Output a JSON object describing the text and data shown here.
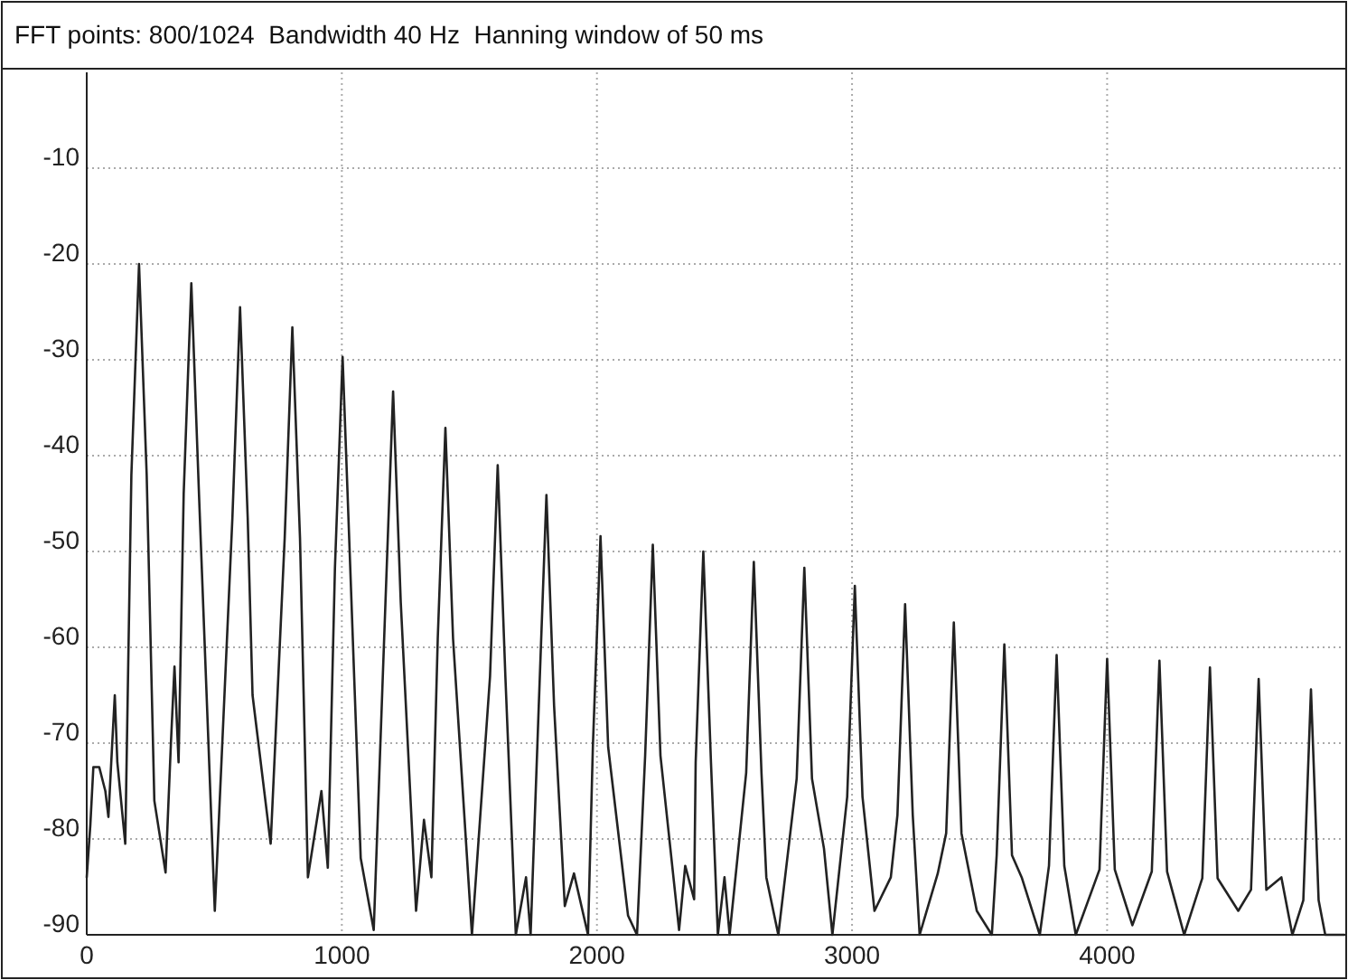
{
  "chart_data": {
    "type": "line",
    "title": "FFT points: 800/1024  Bandwidth 40 Hz  Hanning window of 50 ms",
    "x": [
      0,
      14,
      26,
      49,
      73,
      85,
      100,
      110,
      120,
      151,
      175,
      205,
      235,
      265,
      309,
      330,
      344,
      360,
      380,
      410,
      440,
      502,
      571,
      601,
      631,
      650,
      721,
      776,
      806,
      836,
      867,
      920,
      945,
      973,
      1003,
      1033,
      1074,
      1125,
      1171,
      1201,
      1231,
      1291,
      1322,
      1351,
      1376,
      1406,
      1436,
      1510,
      1581,
      1611,
      1641,
      1682,
      1722,
      1740,
      1772,
      1802,
      1832,
      1874,
      1910,
      1965,
      1984,
      2014,
      2044,
      2122,
      2157,
      2189,
      2219,
      2249,
      2322,
      2346,
      2381,
      2387,
      2417,
      2447,
      2474,
      2500,
      2520,
      2585,
      2615,
      2645,
      2664,
      2711,
      2783,
      2813,
      2843,
      2890,
      2923,
      2981,
      3011,
      3041,
      3088,
      3152,
      3178,
      3208,
      3238,
      3265,
      3336,
      3369,
      3399,
      3429,
      3489,
      3548,
      3567,
      3597,
      3627,
      3665,
      3736,
      3772,
      3802,
      3832,
      3877,
      3970,
      4000,
      4030,
      4099,
      4175,
      4205,
      4235,
      4302,
      4373,
      4403,
      4433,
      4514,
      4564,
      4594,
      4624,
      4683,
      4726,
      4769,
      4799,
      4829,
      4855,
      4930
    ],
    "series": [
      {
        "color": "#222222",
        "values": [
          -84,
          -78.6,
          -72.5,
          -72.5,
          -75,
          -77.7,
          -70,
          -65,
          -72,
          -80.5,
          -42,
          -20,
          -42,
          -76,
          -83.5,
          -70,
          -62,
          -72,
          -44,
          -22,
          -44,
          -87.5,
          -46.5,
          -24.5,
          -46.5,
          -65,
          -80.5,
          -48.6,
          -26.6,
          -48.6,
          -84,
          -75,
          -83,
          -51.7,
          -29.7,
          -51.7,
          -82,
          -89.5,
          -55.3,
          -33.3,
          -55.3,
          -87.5,
          -78,
          -84,
          -59.1,
          -37.1,
          -59.1,
          -90,
          -63,
          -41,
          -63,
          -90,
          -84,
          -90,
          -66.1,
          -44.1,
          -66.1,
          -87,
          -83.6,
          -90,
          -70.4,
          -48.4,
          -70.4,
          -88,
          -90,
          -71.3,
          -49.3,
          -71.3,
          -89.5,
          -82.8,
          -86.3,
          -72,
          -50,
          -72,
          -90,
          -84,
          -90,
          -73.1,
          -51.1,
          -73.1,
          -84,
          -90,
          -73.7,
          -51.7,
          -73.7,
          -81,
          -90,
          -75.6,
          -53.6,
          -75.6,
          -87.5,
          -84,
          -77.5,
          -55.5,
          -77.5,
          -90,
          -83.6,
          -79.4,
          -57.4,
          -79.4,
          -87.5,
          -90,
          -81.7,
          -59.7,
          -81.7,
          -84,
          -90,
          -82.8,
          -60.8,
          -82.8,
          -90,
          -83.2,
          -61.2,
          -83.2,
          -89,
          -83.4,
          -61.4,
          -83.4,
          -90,
          -84.1,
          -62.1,
          -84.1,
          -87.5,
          -85.3,
          -63.3,
          -85.3,
          -84,
          -90,
          -86.4,
          -64.4,
          -86.4,
          -90,
          -90
        ]
      }
    ],
    "xlim": [
      0,
      4930
    ],
    "ylim": [
      -90,
      0
    ],
    "xticks": [
      0,
      1000,
      2000,
      3000,
      4000
    ],
    "yticks": [
      -90,
      -80,
      -70,
      -60,
      -50,
      -40,
      -30,
      -20,
      -10
    ],
    "grid": true,
    "marker": "none",
    "line_style": "solid"
  }
}
